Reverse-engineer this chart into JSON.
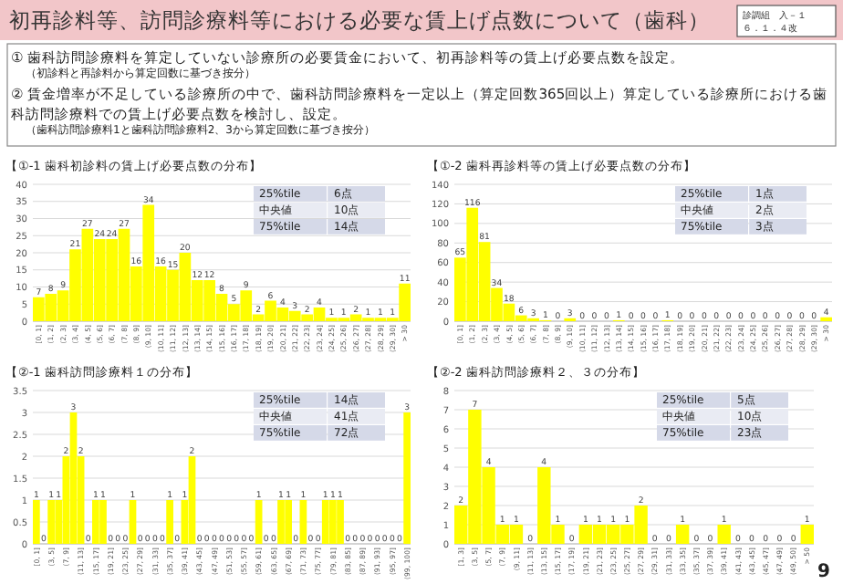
{
  "chart_data": [
    {
      "type": "other",
      "title": "初再診料等、訪問診療料等における必要な賃上げ点数について（歯科）",
      "annotations": [
        "①  歯科訪問診療料を算定していない診療所の必要賃金において、初再診料等の賃上げ必要点数を設定。",
        "（初診料と再診料から算定回数に基づき按分）",
        "②  賃金増率が不足している診療所の中で、歯科訪問診療料を一定以上（算定回数365回以上）算定している診療所における歯科訪問診療料での賃上げ必要点数を検討し、設定。",
        "（歯科訪問診療料1と歯科訪問診療料2、3から算定回数に基づき按分）",
        "診調組　入－１",
        "６．１．４改",
        "9"
      ]
    },
    {
      "type": "bar",
      "title": "【①-1 歯科初診料の賃上げ必要点数の分布】",
      "color": "#ffff00",
      "grid": "y",
      "data_labels": true,
      "ylim": [
        0,
        40
      ],
      "yticks": [
        0,
        5,
        10,
        15,
        20,
        25,
        30,
        35,
        40
      ],
      "categories": [
        "[0, 1]",
        "(1, 2]",
        "(2, 3]",
        "(3, 4]",
        "(4, 5]",
        "(5, 6]",
        "(6, 7]",
        "(7, 8]",
        "(8, 9]",
        "(9, 10]",
        "(10, 11]",
        "(11, 12]",
        "(12, 13]",
        "(13, 14]",
        "(14, 15]",
        "(15, 16]",
        "(16, 17]",
        "(17, 18]",
        "(18, 19]",
        "(19, 20]",
        "(20, 21]",
        "(21, 22]",
        "(22, 23]",
        "(23, 24]",
        "(24, 25]",
        "(25, 26]",
        "(26, 27]",
        "(27, 28]",
        "(28, 29]",
        "(29, 30]",
        "> 30"
      ],
      "values": [
        7,
        8,
        9,
        21,
        27,
        24,
        24,
        27,
        16,
        34,
        16,
        15,
        20,
        12,
        12,
        8,
        5,
        9,
        2,
        6,
        4,
        3,
        2,
        4,
        1,
        1,
        2,
        1,
        1,
        1,
        11
      ],
      "annotations": [
        "25%tile",
        "6点",
        "中央値",
        "10点",
        "75%tile",
        "14点"
      ]
    },
    {
      "type": "bar",
      "title": "【①-2 歯科再診料等の賃上げ必要点数の分布】",
      "color": "#ffff00",
      "grid": "y",
      "data_labels": true,
      "ylim": [
        0,
        140
      ],
      "yticks": [
        0,
        20,
        40,
        60,
        80,
        100,
        120,
        140
      ],
      "categories": [
        "[0, 1]",
        "(1, 2]",
        "(2, 3]",
        "(3, 4]",
        "(4, 5]",
        "(5, 6]",
        "(6, 7]",
        "(7, 8]",
        "(8, 9]",
        "(9, 10]",
        "(10, 11]",
        "(11, 12]",
        "(12, 13]",
        "(13, 14]",
        "(14, 15]",
        "(15, 16]",
        "(16, 17]",
        "(17, 18]",
        "(18, 19]",
        "(19, 20]",
        "(20, 21]",
        "(21, 22]",
        "(22, 23]",
        "(23, 24]",
        "(24, 25]",
        "(25, 26]",
        "(26, 27]",
        "(27, 28]",
        "(28, 29]",
        "(29, 30]",
        "> 30"
      ],
      "values": [
        65,
        116,
        81,
        34,
        18,
        6,
        3,
        1,
        0,
        3,
        0,
        0,
        0,
        1,
        0,
        0,
        0,
        1,
        0,
        0,
        0,
        0,
        0,
        0,
        0,
        0,
        0,
        0,
        0,
        0,
        4
      ],
      "annotations": [
        "25%tile",
        "1点",
        "中央値",
        "2点",
        "75%tile",
        "3点"
      ]
    },
    {
      "type": "bar",
      "title": "【②-1 歯科訪問診療料１の分布】",
      "color": "#ffff00",
      "grid": "y",
      "data_labels": true,
      "ylim": [
        0,
        3.5
      ],
      "yticks": [
        0,
        0.5,
        1,
        1.5,
        2,
        2.5,
        3,
        3.5
      ],
      "categories": [
        "[0, 1]",
        null,
        "(3, 5]",
        null,
        "(7, 9]",
        null,
        "(11, 13]",
        null,
        "(15, 17]",
        null,
        "(19, 21]",
        null,
        "(23, 25]",
        null,
        "(27, 29]",
        null,
        "(31, 33]",
        null,
        "(35, 37]",
        null,
        "(39, 41]",
        null,
        "(43, 45]",
        null,
        "(47, 49]",
        null,
        "(51, 53]",
        null,
        "(55, 57]",
        null,
        "(59, 61]",
        null,
        "(63, 65]",
        null,
        "(67, 69]",
        null,
        "(71, 73]",
        null,
        "(75, 77]",
        null,
        "(79, 81]",
        null,
        "(83, 85]",
        null,
        "(87, 89]",
        null,
        "(91, 93]",
        null,
        "(95, 97]",
        null,
        "(99, 100]"
      ],
      "values": [
        1,
        0,
        1,
        1,
        2,
        3,
        2,
        0,
        1,
        1,
        0,
        0,
        0,
        1,
        0,
        0,
        0,
        0,
        1,
        0,
        1,
        2,
        0,
        0,
        0,
        0,
        0,
        0,
        0,
        0,
        1,
        0,
        0,
        1,
        1,
        0,
        1,
        0,
        0,
        1,
        1,
        1,
        0,
        0,
        0,
        0,
        0,
        0,
        0,
        0,
        3
      ],
      "annotations": [
        "25%tile",
        "14点",
        "中央値",
        "41点",
        "75%tile",
        "72点"
      ]
    },
    {
      "type": "bar",
      "title": "【②-2 歯科訪問診療料２、３の分布】",
      "color": "#ffff00",
      "grid": "y",
      "data_labels": true,
      "ylim": [
        0,
        8
      ],
      "yticks": [
        0,
        1,
        2,
        3,
        4,
        5,
        6,
        7,
        8
      ],
      "categories": [
        "[1, 3]",
        "(3, 5]",
        "(5, 7]",
        "(7, 9]",
        "(9, 11]",
        "(11, 13]",
        "(13, 15]",
        "(15, 17]",
        "(17, 19]",
        "(19, 21]",
        "(21, 23]",
        "(23, 25]",
        "(25, 27]",
        "(27, 29]",
        "(29, 31]",
        "(31, 33]",
        "(33, 35]",
        "(35, 37]",
        "(37, 39]",
        "(39, 41]",
        "(41, 43]",
        "(43, 45]",
        "(45, 47]",
        "(47, 49]",
        "(49, 50]",
        "> 50"
      ],
      "values": [
        2,
        7,
        4,
        1,
        1,
        0,
        4,
        1,
        0,
        1,
        1,
        1,
        1,
        2,
        0,
        0,
        1,
        0,
        0,
        1,
        0,
        0,
        0,
        0,
        0,
        1
      ],
      "annotations": [
        "25%tile",
        "5点",
        "中央値",
        "10点",
        "75%tile",
        "23点"
      ]
    }
  ]
}
